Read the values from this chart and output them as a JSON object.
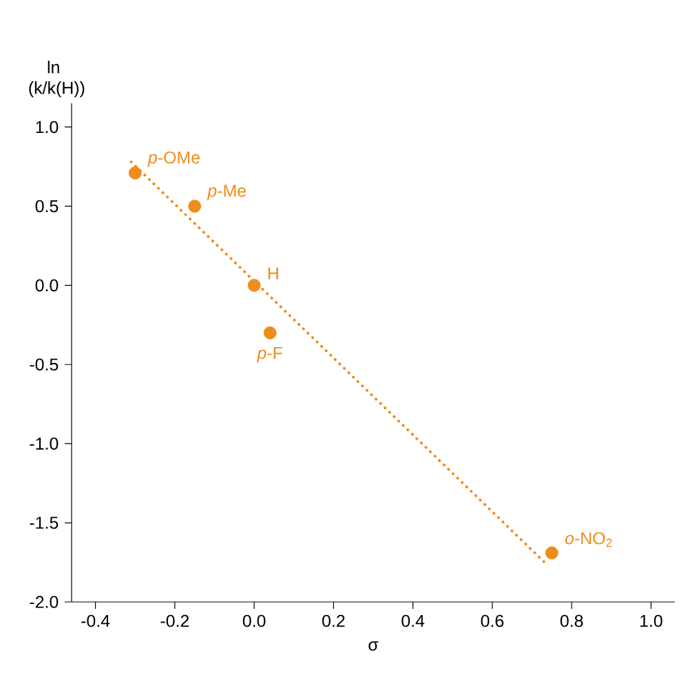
{
  "chart_data": {
    "type": "scatter",
    "xlabel": "σ",
    "ylabel": "ln (k/k(H))",
    "series": [
      {
        "color": "#f08c1a",
        "marker": "circle",
        "x": [
          -0.3,
          -0.15,
          0.0,
          0.04,
          0.75
        ],
        "values": [
          0.71,
          0.5,
          0.0,
          -0.3,
          -1.69
        ]
      },
      {
        "type": "line",
        "color": "#f08c1a",
        "line_style": "dotted",
        "x": [
          -0.31,
          0.74
        ],
        "values": [
          0.78,
          -1.77
        ]
      }
    ],
    "annotations": [
      {
        "text": "*p*-OMe",
        "x": -0.3,
        "y": 0.71
      },
      {
        "text": "*p*-Me",
        "x": -0.15,
        "y": 0.5
      },
      {
        "text": "H",
        "x": 0.0,
        "y": 0.0
      },
      {
        "text": "*p*-F",
        "x": 0.04,
        "y": -0.3
      },
      {
        "text": "*o*-NO$_{2}$",
        "x": 0.75,
        "y": -1.69
      }
    ],
    "xlim": [
      -0.46,
      1.06
    ],
    "ylim": [
      -2.0,
      1.15
    ],
    "xticks": [
      -0.4,
      -0.2,
      {
        "value": 0,
        "label": "0.0"
      },
      0.2,
      0.4,
      0.6,
      0.8,
      {
        "value": 1,
        "label": "1.0"
      }
    ],
    "yticks": [
      {
        "value": -2,
        "label": "-2.0"
      },
      -1.5,
      {
        "value": -1,
        "label": "-1.0"
      },
      -0.5,
      {
        "value": 0,
        "label": "0.0"
      },
      0.5,
      {
        "value": 1,
        "label": "1.0"
      }
    ],
    "grid": false
  }
}
